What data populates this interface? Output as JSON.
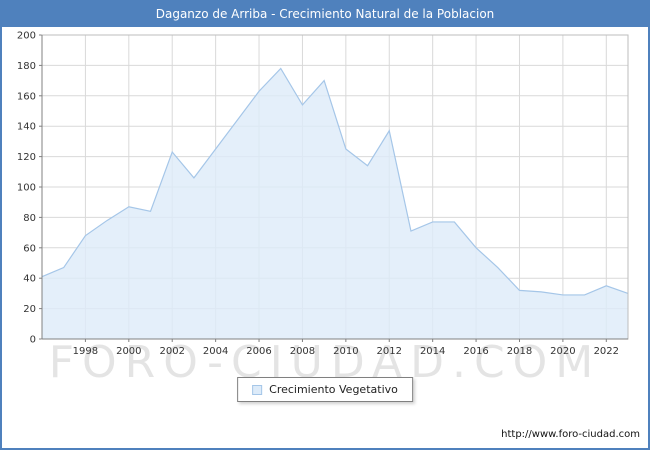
{
  "window": {
    "title": "Daganzo de Arriba - Crecimiento Natural de la Poblacion"
  },
  "legend": {
    "label": "Crecimiento Vegetativo"
  },
  "watermark": "FORO-CIUDAD.COM",
  "footer": {
    "url": "http://www.foro-ciudad.com"
  },
  "colors": {
    "titlebar_bg": "#4f81bd",
    "titlebar_text": "#ffffff",
    "frame_border": "#4f81bd",
    "area_fill": "#ddebf9",
    "area_stroke": "#a5c6e8",
    "grid": "#d9d9d9",
    "axis": "#808080",
    "plot_border": "#bdbdbd",
    "text": "#333333"
  },
  "chart_data": {
    "type": "area",
    "title": "Daganzo de Arriba - Crecimiento Natural de la Poblacion",
    "series_name": "Crecimiento Vegetativo",
    "x": [
      1996,
      1997,
      1998,
      1999,
      2000,
      2001,
      2002,
      2003,
      2004,
      2005,
      2006,
      2007,
      2008,
      2009,
      2010,
      2011,
      2012,
      2013,
      2014,
      2015,
      2016,
      2017,
      2018,
      2019,
      2020,
      2021,
      2022,
      2023
    ],
    "values": [
      41,
      47,
      68,
      78,
      87,
      84,
      123,
      106,
      125,
      144,
      163,
      178,
      154,
      170,
      125,
      114,
      137,
      71,
      77,
      77,
      60,
      47,
      32,
      31,
      29,
      29,
      35,
      30
    ],
    "ylim": [
      0,
      200
    ],
    "y_step": 20,
    "x_tick_labels": [
      1998,
      2000,
      2002,
      2004,
      2006,
      2008,
      2010,
      2012,
      2014,
      2016,
      2018,
      2020,
      2022
    ],
    "grid": true,
    "legend_position": "bottom",
    "xlabel": "",
    "ylabel": ""
  }
}
